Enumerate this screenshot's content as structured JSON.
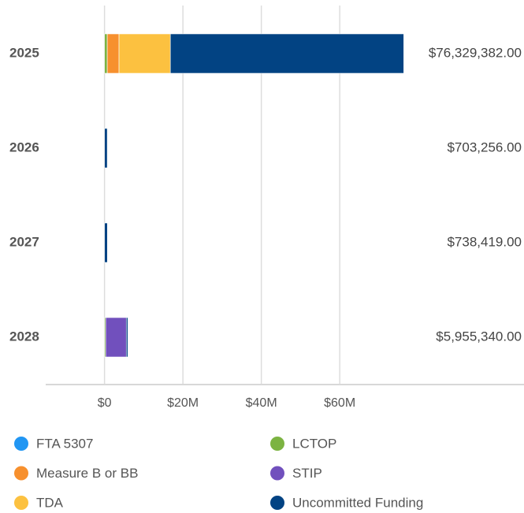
{
  "chart_data": {
    "type": "stacked-bar-horizontal",
    "categories": [
      "2025",
      "2026",
      "2027",
      "2028"
    ],
    "series": [
      {
        "name": "FTA 5307",
        "color": "#2196f3",
        "values": [
          0,
          0,
          0,
          0
        ]
      },
      {
        "name": "LCTOP",
        "color": "#7cb342",
        "values": [
          700000,
          0,
          0,
          300000
        ]
      },
      {
        "name": "Measure B or BB",
        "color": "#f7902e",
        "values": [
          3000000,
          0,
          0,
          0
        ]
      },
      {
        "name": "STIP",
        "color": "#7150bd",
        "values": [
          0,
          0,
          0,
          5255340
        ]
      },
      {
        "name": "TDA",
        "color": "#fcc140",
        "values": [
          13100000,
          0,
          0,
          0
        ]
      },
      {
        "name": "Uncommitted Funding",
        "color": "#024383",
        "values": [
          59529382,
          703256,
          738419,
          400000
        ]
      }
    ],
    "totals": [
      76329382,
      703256,
      738419,
      5955340
    ],
    "value_labels": [
      "$76,329,382.00",
      "$703,256.00",
      "$738,419.00",
      "$5,955,340.00"
    ],
    "xlim": [
      -15000000,
      107000000
    ],
    "xticks": [
      {
        "value": 0,
        "label": "$0"
      },
      {
        "value": 20000000,
        "label": "$20M"
      },
      {
        "value": 40000000,
        "label": "$40M"
      },
      {
        "value": 60000000,
        "label": "$60M"
      }
    ],
    "grid": true
  }
}
